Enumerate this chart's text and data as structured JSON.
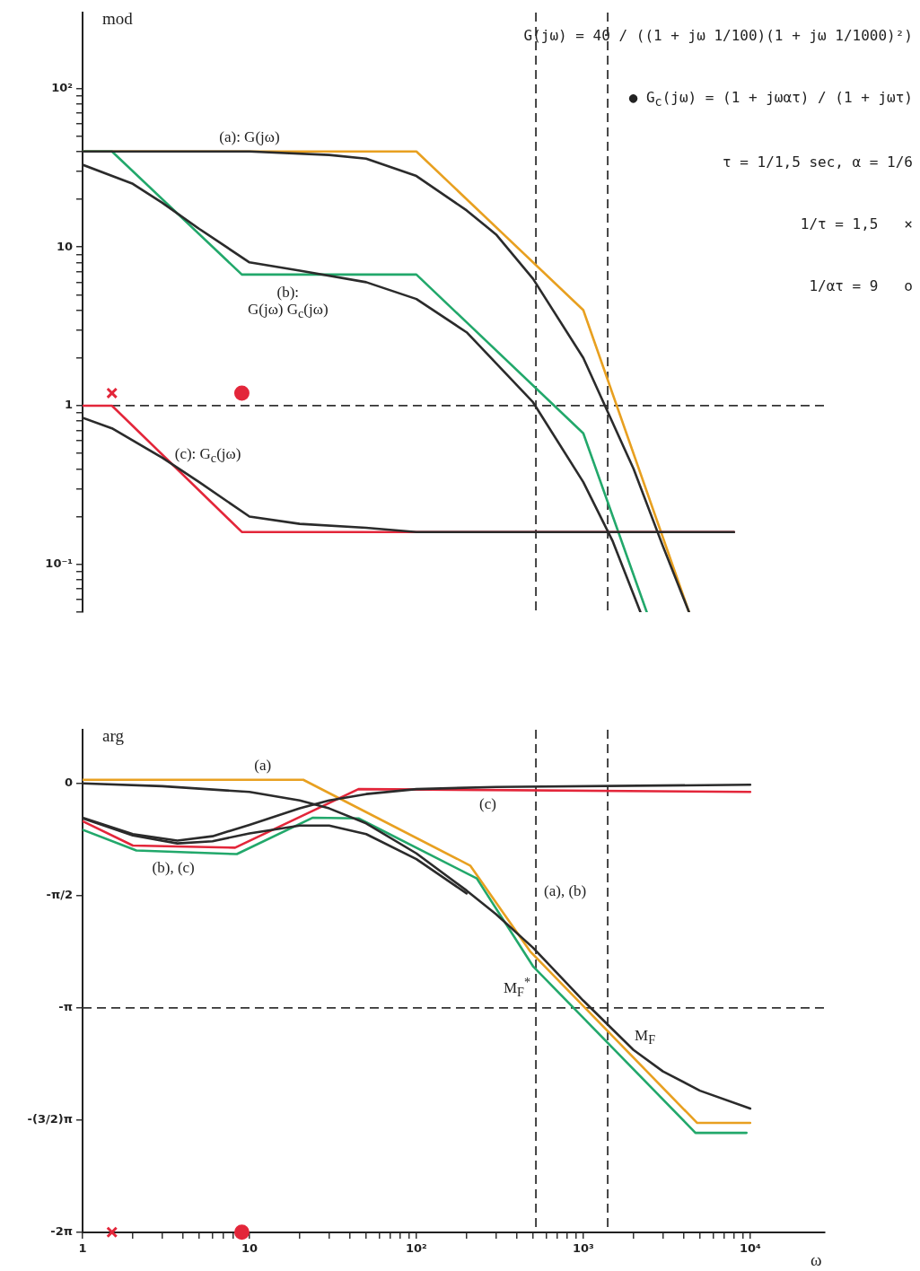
{
  "chart_data": [
    {
      "type": "line",
      "ylabel": "mod",
      "xlim": [
        1,
        28000
      ],
      "ylim": [
        0.05,
        300
      ],
      "log": "xy",
      "tick_labels": "y",
      "yticks": [
        {
          "value": 0.05,
          "label": null
        },
        {
          "value": 0.06,
          "label": null
        },
        {
          "value": 0.07,
          "label": null
        },
        {
          "value": 0.08,
          "label": null
        },
        {
          "value": 0.09,
          "label": null
        },
        {
          "value": 0.1,
          "label": "10⁻¹"
        },
        {
          "value": 0.2,
          "label": null
        },
        {
          "value": 0.3,
          "label": null
        },
        {
          "value": 0.4,
          "label": null
        },
        {
          "value": 0.5,
          "label": null
        },
        {
          "value": 0.6,
          "label": null
        },
        {
          "value": 0.7,
          "label": null
        },
        {
          "value": 0.8,
          "label": null
        },
        {
          "value": 0.9,
          "label": null
        },
        1,
        {
          "value": 2,
          "label": null
        },
        {
          "value": 3,
          "label": null
        },
        {
          "value": 4,
          "label": null
        },
        {
          "value": 5,
          "label": null
        },
        {
          "value": 6,
          "label": null
        },
        {
          "value": 7,
          "label": null
        },
        {
          "value": 8,
          "label": null
        },
        {
          "value": 9,
          "label": null
        },
        10,
        {
          "value": 20,
          "label": null
        },
        {
          "value": 30,
          "label": null
        },
        {
          "value": 40,
          "label": null
        },
        {
          "value": 50,
          "label": null
        },
        {
          "value": 60,
          "label": null
        },
        {
          "value": 70,
          "label": null
        },
        {
          "value": 80,
          "label": null
        },
        {
          "value": 90,
          "label": null
        },
        {
          "value": 100,
          "label": "10²"
        }
      ],
      "series": [
        {
          "color": "#e8a020",
          "x": [
            1,
            100,
            1000,
            4300
          ],
          "values": [
            40,
            40,
            4,
            0.05
          ]
        },
        {
          "color": "#22a86b",
          "x": [
            1,
            1.5,
            9,
            100,
            1000,
            2400
          ],
          "values": [
            40,
            40,
            6.7,
            6.7,
            0.67,
            0.05
          ]
        },
        {
          "color": "#e3263a",
          "x": [
            1,
            1.5,
            9,
            8000
          ],
          "values": [
            1,
            1,
            0.16,
            0.16
          ]
        },
        {
          "color": "#2b2b2b",
          "x": [
            1,
            10,
            30,
            50,
            100,
            200,
            300,
            500,
            1000,
            2000,
            3000,
            4300
          ],
          "values": [
            40,
            40,
            38,
            36,
            28,
            17,
            12,
            6.3,
            2.0,
            0.4,
            0.13,
            0.05
          ]
        },
        {
          "color": "#2b2b2b",
          "x": [
            1,
            2,
            3,
            5,
            10,
            20,
            50,
            100,
            200,
            500,
            1000,
            1500,
            2200
          ],
          "values": [
            33,
            25,
            19,
            13,
            8,
            7.1,
            6,
            4.7,
            2.9,
            1.05,
            0.33,
            0.14,
            0.05
          ]
        },
        {
          "color": "#2b2b2b",
          "x": [
            1,
            1.5,
            3,
            5,
            10,
            20,
            50,
            100,
            8000
          ],
          "values": [
            0.84,
            0.72,
            0.47,
            0.33,
            0.2,
            0.18,
            0.17,
            0.16,
            0.16
          ]
        },
        {
          "type": "scatter",
          "color": "#e3263a",
          "marker": "cross",
          "x": [
            1.5
          ],
          "values": [
            1.2
          ]
        },
        {
          "type": "scatter",
          "color": "#e3263a",
          "marker": "circle",
          "x": [
            9
          ],
          "values": [
            1.2
          ]
        }
      ],
      "ref_lines": [
        {
          "axis": "y",
          "value": 1,
          "line_style": "dashed",
          "color": "#333333"
        },
        {
          "axis": "x",
          "value": 520,
          "line_style": "dashed",
          "color": "#333333"
        },
        {
          "axis": "x",
          "value": 1400,
          "line_style": "dashed",
          "color": "#333333"
        }
      ],
      "annotations": [
        {
          "text": "(a): G(jω)",
          "x": 10,
          "y": 40
        },
        {
          "text": "(b):\nG(jω) G$_{c}$(jω)",
          "x": 17,
          "y": 6.7
        },
        {
          "text": "(c): G$_{c}$(jω)",
          "x": 3,
          "y": 0.49
        },
        "G(jω) = 40 / ((1 + jω 1/100)(1 + jω 1/1000)²)",
        "● G$_{c}$(jω) = (1 + jωατ) / (1 + jωτ)",
        "τ = 1/1,5 sec, α = 1/6",
        "1/τ = 1,5   ×",
        "1/ατ = 9   o"
      ]
    },
    {
      "type": "line",
      "ylabel": "arg",
      "xlabel": "ω",
      "xlim": [
        1,
        28000
      ],
      "ylim": [
        -6.283,
        0.75
      ],
      "log": "x",
      "xticks": [
        1,
        {
          "value": 2,
          "label": null
        },
        {
          "value": 3,
          "label": null
        },
        {
          "value": 4,
          "label": null
        },
        {
          "value": 5,
          "label": null
        },
        {
          "value": 6,
          "label": null
        },
        {
          "value": 7,
          "label": null
        },
        {
          "value": 8,
          "label": null
        },
        {
          "value": 9,
          "label": null
        },
        10,
        {
          "value": 20,
          "label": null
        },
        {
          "value": 30,
          "label": null
        },
        {
          "value": 40,
          "label": null
        },
        {
          "value": 50,
          "label": null
        },
        {
          "value": 60,
          "label": null
        },
        {
          "value": 70,
          "label": null
        },
        {
          "value": 80,
          "label": null
        },
        {
          "value": 90,
          "label": null
        },
        {
          "value": 100,
          "label": "10²"
        },
        {
          "value": 200,
          "label": null
        },
        {
          "value": 300,
          "label": null
        },
        {
          "value": 400,
          "label": null
        },
        {
          "value": 500,
          "label": null
        },
        {
          "value": 600,
          "label": null
        },
        {
          "value": 700,
          "label": null
        },
        {
          "value": 800,
          "label": null
        },
        {
          "value": 900,
          "label": null
        },
        {
          "value": 1000,
          "label": "10³"
        },
        {
          "value": 2000,
          "label": null
        },
        {
          "value": 3000,
          "label": null
        },
        {
          "value": 4000,
          "label": null
        },
        {
          "value": 5000,
          "label": null
        },
        {
          "value": 6000,
          "label": null
        },
        {
          "value": 7000,
          "label": null
        },
        {
          "value": 8000,
          "label": null
        },
        {
          "value": 9000,
          "label": null
        },
        {
          "value": 10000,
          "label": "10⁴"
        }
      ],
      "yticks": [
        0,
        {
          "value": -1.571,
          "label": "-π/2"
        },
        {
          "value": -3.142,
          "label": "-π"
        },
        {
          "value": -4.712,
          "label": "-(3/2)π"
        },
        {
          "value": -6.283,
          "label": "-2π"
        }
      ],
      "series": [
        {
          "color": "#e8a020",
          "x": [
            1,
            21,
            210,
            480,
            4800,
            10000
          ],
          "values": [
            0.05,
            0.05,
            -1.15,
            -2.35,
            -4.75,
            -4.75
          ]
        },
        {
          "color": "#22a86b",
          "x": [
            1,
            2.1,
            8.4,
            24,
            45,
            230,
            500,
            4700,
            9500
          ],
          "values": [
            -0.65,
            -0.94,
            -0.99,
            -0.48,
            -0.49,
            -1.33,
            -2.56,
            -4.89,
            -4.89
          ]
        },
        {
          "color": "#e3263a",
          "x": [
            1,
            2,
            8.2,
            45,
            10000
          ],
          "values": [
            -0.53,
            -0.87,
            -0.9,
            -0.08,
            -0.12
          ]
        },
        {
          "color": "#2b2b2b",
          "x": [
            1,
            3,
            10,
            20,
            30,
            50,
            100,
            200,
            300,
            500,
            1000,
            2000,
            3000,
            5000,
            10000
          ],
          "values": [
            0,
            -0.04,
            -0.12,
            -0.24,
            -0.35,
            -0.56,
            -0.98,
            -1.5,
            -1.83,
            -2.3,
            -3.04,
            -3.73,
            -4.03,
            -4.3,
            -4.55
          ]
        },
        {
          "color": "#2b2b2b",
          "x": [
            1,
            2,
            3.7,
            6,
            10,
            20,
            30,
            50,
            100,
            200
          ],
          "values": [
            -0.49,
            -0.73,
            -0.84,
            -0.81,
            -0.7,
            -0.59,
            -0.59,
            -0.71,
            -1.06,
            -1.54
          ]
        },
        {
          "color": "#2b2b2b",
          "x": [
            1,
            2,
            3.7,
            6,
            10,
            20,
            30,
            50,
            100,
            300,
            10000
          ],
          "values": [
            -0.48,
            -0.71,
            -0.8,
            -0.74,
            -0.58,
            -0.35,
            -0.24,
            -0.15,
            -0.08,
            -0.05,
            -0.02
          ]
        },
        {
          "type": "scatter",
          "color": "#e3263a",
          "marker": "cross",
          "x": [
            1.5
          ],
          "values": [
            -6.28
          ]
        },
        {
          "type": "scatter",
          "color": "#e3263a",
          "marker": "circle",
          "x": [
            9
          ],
          "values": [
            -6.28
          ]
        }
      ],
      "ref_lines": [
        {
          "axis": "y",
          "value": -3.142,
          "line_style": "dashed",
          "color": "#333333"
        },
        {
          "axis": "x",
          "value": 520,
          "line_style": "dashed",
          "color": "#333333"
        },
        {
          "axis": "x",
          "value": 1400,
          "line_style": "dashed",
          "color": "#333333"
        }
      ],
      "annotations": [
        {
          "text": "(a)",
          "x": 12,
          "y": 0.05
        },
        {
          "text": "(c)",
          "x": 268,
          "y": -0.09
        },
        {
          "text": "(b), (c)",
          "x": 3.5,
          "y": -0.96
        },
        {
          "text": "(a), (b)",
          "x": 520,
          "y": -1.51
        },
        {
          "text": "M$_{F}$$^{*}$",
          "x": 520,
          "y": -2.85
        },
        {
          "text": "M$_{F}$",
          "x": 1400,
          "y": -3.54
        }
      ]
    }
  ]
}
